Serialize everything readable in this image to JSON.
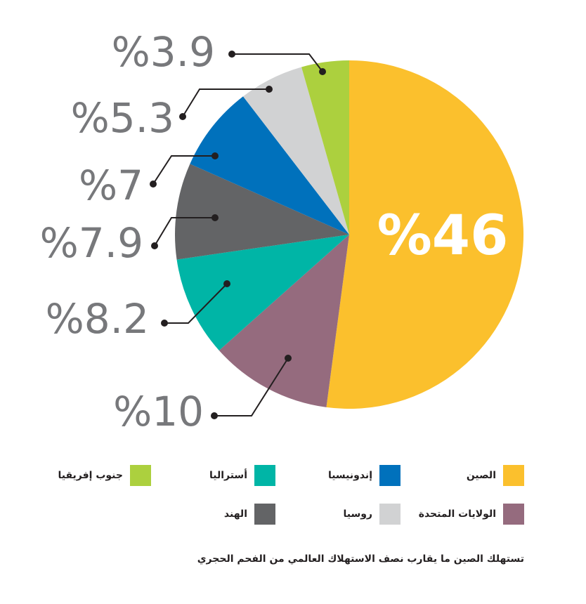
{
  "chart_data": {
    "type": "pie",
    "slices": [
      {
        "name": "الصين",
        "value": 46,
        "label": "%46",
        "color": "#fbc02d"
      },
      {
        "name": "الولايات المتحدة",
        "value": 10,
        "label": "%10",
        "color": "#956b7e"
      },
      {
        "name": "أستراليا",
        "value": 8.2,
        "label": "%8.2",
        "color": "#00b5a6"
      },
      {
        "name": "الهند",
        "value": 7.9,
        "label": "%7.9",
        "color": "#636466"
      },
      {
        "name": "إندونيسيا",
        "value": 7,
        "label": "%7",
        "color": "#0071bc"
      },
      {
        "name": "روسيا",
        "value": 5.3,
        "label": "%5.3",
        "color": "#d1d2d3"
      },
      {
        "name": "جنوب إفريقيا",
        "value": 3.9,
        "label": "%3.9",
        "color": "#acd03e"
      }
    ]
  },
  "legend": [
    {
      "label": "الصين",
      "color": "#fbc02d"
    },
    {
      "label": "إندونيسيا",
      "color": "#0071bc"
    },
    {
      "label": "أستراليا",
      "color": "#00b5a6"
    },
    {
      "label": "جنوب إفريقيا",
      "color": "#acd03e"
    },
    {
      "label": "الولايات المتحدة",
      "color": "#956b7e"
    },
    {
      "label": "روسيا",
      "color": "#d1d2d3"
    },
    {
      "label": "الهند",
      "color": "#636466"
    }
  ],
  "caption": "تستهلك الصين ما يقارب نصف الاستهلاك العالمي من الفحم الحجري"
}
